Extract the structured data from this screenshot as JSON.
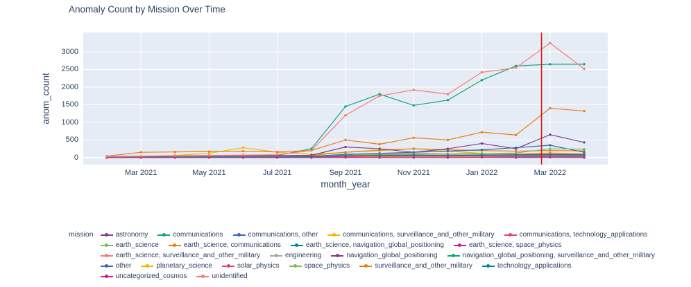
{
  "chart_data": {
    "type": "line",
    "title": "Anomaly Count by Mission Over Time",
    "xlabel": "month_year",
    "ylabel": "anom_count",
    "legend_title": "mission",
    "plot_bg": "#e5ecf6",
    "grid_color": "#ffffff",
    "text_color": "#2a3f5f",
    "x": [
      "Feb 2021",
      "Mar 2021",
      "Apr 2021",
      "May 2021",
      "Jun 2021",
      "Jul 2021",
      "Aug 2021",
      "Sep 2021",
      "Oct 2021",
      "Nov 2021",
      "Dec 2021",
      "Jan 2022",
      "Feb 2022",
      "Mar 2022",
      "Apr 2022"
    ],
    "x_ticks": [
      {
        "index": 1,
        "label": "Mar 2021"
      },
      {
        "index": 3,
        "label": "May 2021"
      },
      {
        "index": 5,
        "label": "Jul 2021"
      },
      {
        "index": 7,
        "label": "Sep 2021"
      },
      {
        "index": 9,
        "label": "Nov 2021"
      },
      {
        "index": 11,
        "label": "Jan 2022"
      },
      {
        "index": 13,
        "label": "Mar 2022"
      }
    ],
    "y_ticks": [
      0,
      500,
      1000,
      1500,
      2000,
      2500,
      3000
    ],
    "ylim": [
      -200,
      3550
    ],
    "vline": {
      "x_index": 12.75,
      "color": "#e3120b"
    },
    "series": [
      {
        "name": "astronomy",
        "color": "#7F3C8D",
        "values": [
          2,
          3,
          3,
          4,
          4,
          5,
          5,
          8,
          10,
          8,
          10,
          12,
          10,
          15,
          12
        ]
      },
      {
        "name": "communications",
        "color": "#11A579",
        "values": [
          15,
          20,
          30,
          40,
          50,
          60,
          250,
          1450,
          1800,
          1480,
          1630,
          2200,
          2600,
          2650,
          2650
        ]
      },
      {
        "name": "communications, other",
        "color": "#3969AC",
        "values": [
          5,
          8,
          10,
          10,
          12,
          10,
          15,
          30,
          40,
          35,
          40,
          55,
          60,
          80,
          60
        ]
      },
      {
        "name": "communications, surveillance_and_other_military",
        "color": "#F2B701",
        "values": [
          10,
          30,
          60,
          120,
          280,
          150,
          90,
          150,
          220,
          250,
          180,
          120,
          95,
          110,
          90
        ]
      },
      {
        "name": "communications, technology_applications",
        "color": "#E73F74",
        "values": [
          3,
          4,
          5,
          5,
          6,
          5,
          6,
          10,
          12,
          10,
          12,
          15,
          15,
          20,
          15
        ]
      },
      {
        "name": "earth_science",
        "color": "#80BA5A",
        "values": [
          8,
          12,
          15,
          18,
          22,
          20,
          25,
          55,
          75,
          65,
          60,
          80,
          70,
          90,
          80
        ]
      },
      {
        "name": "earth_science, communications",
        "color": "#E68310",
        "values": [
          12,
          20,
          30,
          40,
          50,
          45,
          60,
          150,
          200,
          250,
          220,
          200,
          180,
          200,
          190
        ]
      },
      {
        "name": "earth_science, navigation_global_positioning",
        "color": "#008695",
        "values": [
          4,
          5,
          6,
          8,
          10,
          8,
          10,
          20,
          28,
          30,
          25,
          30,
          32,
          40,
          35
        ]
      },
      {
        "name": "earth_science, space_physics",
        "color": "#CF1C90",
        "values": [
          3,
          4,
          4,
          5,
          5,
          5,
          6,
          9,
          10,
          10,
          11,
          12,
          14,
          15,
          12
        ]
      },
      {
        "name": "earth_science, surveillance_and_other_military",
        "color": "#f97b72",
        "values": [
          10,
          18,
          22,
          28,
          30,
          28,
          40,
          80,
          100,
          120,
          105,
          115,
          100,
          130,
          110
        ]
      },
      {
        "name": "engineering",
        "color": "#A5AA99",
        "values": [
          2,
          3,
          3,
          3,
          4,
          4,
          4,
          6,
          8,
          8,
          9,
          10,
          9,
          10,
          10
        ]
      },
      {
        "name": "navigation_global_positioning",
        "color": "#7F3C8D",
        "values": [
          20,
          30,
          40,
          50,
          60,
          55,
          65,
          300,
          250,
          150,
          250,
          400,
          250,
          650,
          430
        ]
      },
      {
        "name": "navigation_global_positioning, surveillance_and_other_military",
        "color": "#11A579",
        "values": [
          5,
          8,
          10,
          14,
          16,
          15,
          20,
          40,
          50,
          60,
          55,
          65,
          70,
          80,
          70
        ]
      },
      {
        "name": "other",
        "color": "#3969AC",
        "values": [
          10,
          15,
          20,
          25,
          30,
          28,
          35,
          90,
          120,
          150,
          180,
          220,
          280,
          350,
          150
        ]
      },
      {
        "name": "planetary_science",
        "color": "#F2B701",
        "values": [
          4,
          6,
          8,
          10,
          12,
          10,
          12,
          22,
          30,
          38,
          32,
          40,
          50,
          60,
          50
        ]
      },
      {
        "name": "solar_physics",
        "color": "#E73F74",
        "values": [
          5,
          8,
          10,
          14,
          15,
          12,
          15,
          30,
          40,
          48,
          42,
          50,
          60,
          70,
          60
        ]
      },
      {
        "name": "space_physics",
        "color": "#80BA5A",
        "values": [
          8,
          14,
          20,
          26,
          30,
          26,
          32,
          60,
          85,
          100,
          92,
          112,
          130,
          250,
          240
        ]
      },
      {
        "name": "surveillance_and_other_military",
        "color": "#E68310",
        "values": [
          40,
          150,
          160,
          170,
          180,
          160,
          200,
          500,
          380,
          560,
          500,
          720,
          640,
          1400,
          1320
        ]
      },
      {
        "name": "technology_applications",
        "color": "#008695",
        "values": [
          8,
          12,
          15,
          18,
          20,
          20,
          25,
          50,
          60,
          70,
          62,
          72,
          80,
          90,
          80
        ]
      },
      {
        "name": "uncategorized_cosmos",
        "color": "#CF1C90",
        "values": [
          0,
          0,
          0,
          0,
          0,
          0,
          0,
          4,
          0,
          0,
          0,
          5,
          0,
          5,
          0
        ]
      },
      {
        "name": "unidentified",
        "color": "#f97b72",
        "values": [
          30,
          40,
          50,
          60,
          70,
          80,
          200,
          1200,
          1750,
          1920,
          1800,
          2420,
          2550,
          3250,
          2520
        ]
      }
    ]
  }
}
